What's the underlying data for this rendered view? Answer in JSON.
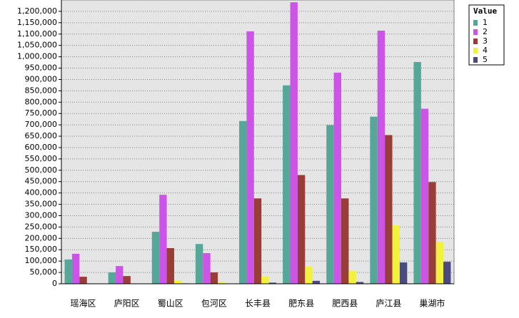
{
  "chart_data": {
    "type": "bar",
    "categories": [
      "瑶海区",
      "庐阳区",
      "蜀山区",
      "包河区",
      "长丰县",
      "肥东县",
      "肥西县",
      "庐江县",
      "巢湖市"
    ],
    "series": [
      {
        "name": "1",
        "color": "#55a898",
        "values": [
          107000,
          50000,
          229000,
          175000,
          717000,
          874000,
          699000,
          736000,
          977000
        ]
      },
      {
        "name": "2",
        "color": "#cc55e8",
        "values": [
          132000,
          78000,
          392000,
          135000,
          1112000,
          1240000,
          930000,
          1115000,
          771000
        ]
      },
      {
        "name": "3",
        "color": "#993d38",
        "values": [
          31000,
          34000,
          157000,
          50000,
          376000,
          479000,
          376000,
          655000,
          448000
        ]
      },
      {
        "name": "4",
        "color": "#f2f23c",
        "values": [
          2000,
          3000,
          15000,
          6000,
          32000,
          75000,
          56000,
          257000,
          185000
        ]
      },
      {
        "name": "5",
        "color": "#4a4a80",
        "values": [
          1000,
          1000,
          2000,
          1000,
          5000,
          13000,
          8000,
          94000,
          97000
        ]
      }
    ],
    "legend_title": "Value",
    "legend_position": "right",
    "ylim": [
      0,
      1250000
    ],
    "yticks": [
      0,
      {
        "value": 50000,
        "label": "50,000"
      },
      {
        "value": 100000,
        "label": "100,000"
      },
      {
        "value": 150000,
        "label": "150,000"
      },
      {
        "value": 200000,
        "label": "200,000"
      },
      {
        "value": 250000,
        "label": "250,000"
      },
      {
        "value": 300000,
        "label": "300,000"
      },
      {
        "value": 350000,
        "label": "350,000"
      },
      {
        "value": 400000,
        "label": "400,000"
      },
      {
        "value": 450000,
        "label": "450,000"
      },
      {
        "value": 500000,
        "label": "500,000"
      },
      {
        "value": 550000,
        "label": "550,000"
      },
      {
        "value": 600000,
        "label": "600,000"
      },
      {
        "value": 650000,
        "label": "650,000"
      },
      {
        "value": 700000,
        "label": "700,000"
      },
      {
        "value": 750000,
        "label": "750,000"
      },
      {
        "value": 800000,
        "label": "800,000"
      },
      {
        "value": 850000,
        "label": "850,000"
      },
      {
        "value": 900000,
        "label": "900,000"
      },
      {
        "value": 950000,
        "label": "950,000"
      },
      {
        "value": 1000000,
        "label": "1,000,000"
      },
      {
        "value": 1050000,
        "label": "1,050,000"
      },
      {
        "value": 1100000,
        "label": "1,100,000"
      },
      {
        "value": 1150000,
        "label": "1,150,000"
      },
      {
        "value": 1200000,
        "label": "1,200,000"
      }
    ],
    "grid": true
  }
}
